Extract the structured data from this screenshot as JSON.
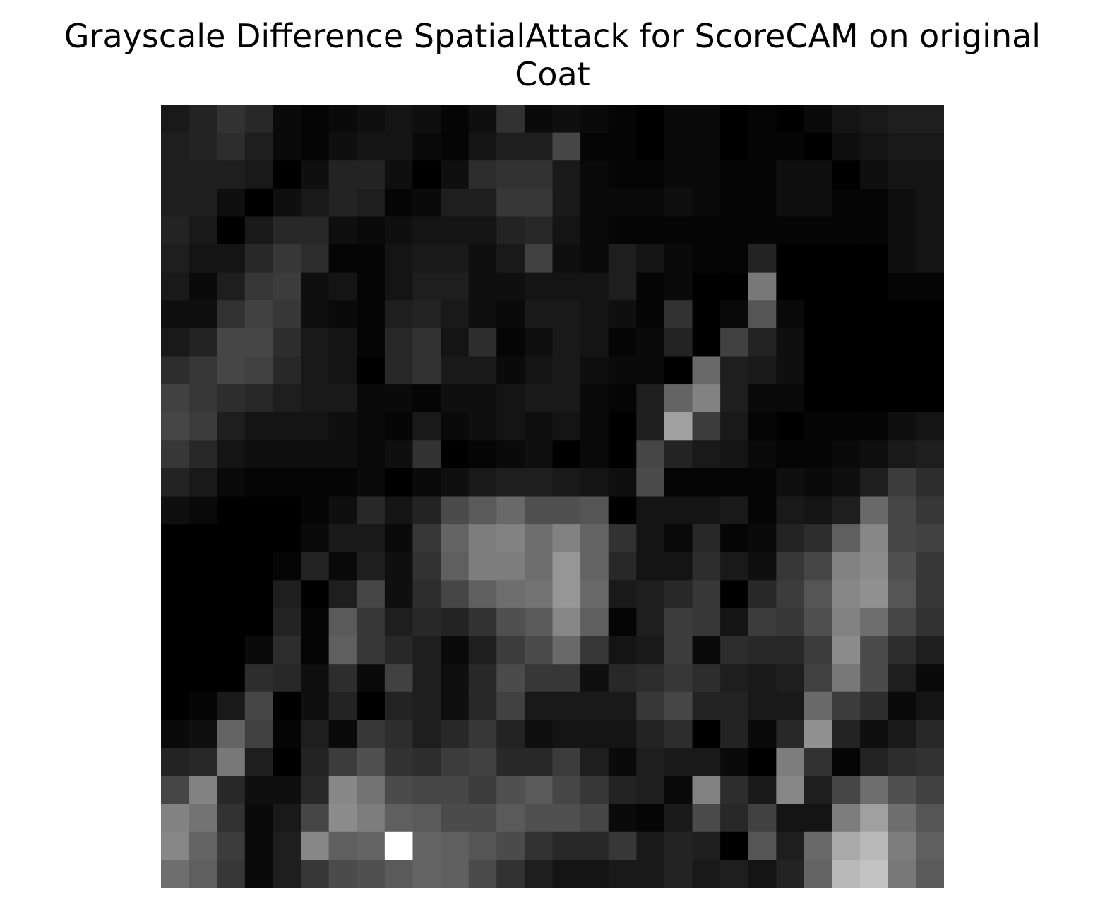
{
  "chart_data": {
    "type": "heatmap",
    "title_lines": [
      "Grayscale Difference SpatialAttack for ScoreCAM on original",
      "Coat"
    ],
    "colormap": "gray",
    "value_range": [
      0,
      255
    ],
    "axes": "off",
    "rows": 28,
    "cols": 28,
    "values": [
      [
        25,
        35,
        50,
        40,
        10,
        5,
        10,
        15,
        20,
        15,
        5,
        15,
        50,
        10,
        15,
        10,
        5,
        0,
        10,
        10,
        0,
        5,
        0,
        10,
        20,
        25,
        30,
        30
      ],
      [
        30,
        35,
        45,
        30,
        10,
        5,
        15,
        20,
        20,
        10,
        5,
        20,
        30,
        30,
        70,
        5,
        5,
        0,
        10,
        10,
        0,
        5,
        5,
        0,
        15,
        20,
        25,
        25
      ],
      [
        30,
        30,
        30,
        25,
        0,
        15,
        35,
        35,
        15,
        0,
        15,
        45,
        50,
        50,
        25,
        10,
        5,
        5,
        10,
        10,
        5,
        5,
        15,
        15,
        0,
        15,
        20,
        20
      ],
      [
        30,
        30,
        15,
        0,
        15,
        25,
        35,
        30,
        5,
        10,
        30,
        30,
        55,
        55,
        25,
        10,
        10,
        10,
        15,
        10,
        5,
        5,
        15,
        15,
        5,
        5,
        15,
        20
      ],
      [
        35,
        25,
        0,
        25,
        40,
        40,
        15,
        10,
        15,
        20,
        20,
        20,
        35,
        40,
        20,
        10,
        5,
        5,
        5,
        5,
        5,
        5,
        5,
        5,
        5,
        5,
        15,
        20
      ],
      [
        30,
        20,
        20,
        40,
        55,
        45,
        5,
        5,
        20,
        25,
        25,
        15,
        25,
        65,
        15,
        10,
        30,
        20,
        10,
        5,
        5,
        35,
        0,
        0,
        0,
        0,
        15,
        20
      ],
      [
        25,
        10,
        30,
        55,
        60,
        15,
        20,
        5,
        20,
        30,
        30,
        15,
        15,
        20,
        20,
        20,
        30,
        5,
        10,
        0,
        0,
        120,
        0,
        0,
        0,
        0,
        5,
        5
      ],
      [
        15,
        15,
        50,
        65,
        55,
        15,
        10,
        5,
        30,
        35,
        25,
        15,
        10,
        25,
        25,
        20,
        15,
        5,
        50,
        0,
        10,
        85,
        10,
        0,
        0,
        0,
        0,
        0
      ],
      [
        25,
        35,
        70,
        70,
        45,
        25,
        20,
        5,
        40,
        50,
        20,
        45,
        5,
        15,
        25,
        20,
        5,
        10,
        35,
        0,
        65,
        35,
        15,
        0,
        0,
        0,
        0,
        0
      ],
      [
        45,
        55,
        70,
        65,
        40,
        25,
        20,
        0,
        40,
        50,
        25,
        25,
        10,
        20,
        25,
        15,
        10,
        10,
        0,
        105,
        30,
        25,
        15,
        0,
        0,
        0,
        0,
        0
      ],
      [
        65,
        55,
        45,
        40,
        30,
        25,
        25,
        10,
        10,
        5,
        15,
        15,
        20,
        25,
        25,
        10,
        5,
        30,
        100,
        130,
        30,
        10,
        10,
        0,
        0,
        0,
        0,
        0
      ],
      [
        70,
        60,
        30,
        20,
        20,
        20,
        15,
        10,
        5,
        25,
        10,
        15,
        20,
        15,
        20,
        10,
        0,
        30,
        160,
        60,
        25,
        5,
        0,
        5,
        5,
        5,
        15,
        20
      ],
      [
        55,
        40,
        20,
        15,
        15,
        15,
        15,
        10,
        15,
        50,
        0,
        5,
        10,
        15,
        0,
        10,
        0,
        70,
        35,
        25,
        20,
        10,
        5,
        5,
        10,
        15,
        25,
        30
      ],
      [
        35,
        25,
        10,
        5,
        5,
        5,
        5,
        10,
        0,
        10,
        15,
        25,
        30,
        30,
        25,
        20,
        15,
        75,
        5,
        5,
        5,
        5,
        15,
        10,
        15,
        30,
        60,
        45
      ],
      [
        15,
        10,
        0,
        0,
        0,
        5,
        15,
        40,
        20,
        35,
        75,
        90,
        105,
        80,
        80,
        85,
        0,
        20,
        20,
        20,
        25,
        5,
        25,
        20,
        30,
        105,
        70,
        55
      ],
      [
        0,
        0,
        0,
        0,
        0,
        10,
        25,
        25,
        10,
        55,
        100,
        125,
        130,
        110,
        130,
        100,
        50,
        20,
        10,
        40,
        5,
        10,
        35,
        45,
        95,
        135,
        70,
        65
      ],
      [
        0,
        0,
        0,
        0,
        5,
        35,
        10,
        30,
        15,
        50,
        95,
        125,
        125,
        110,
        150,
        100,
        40,
        20,
        20,
        45,
        25,
        15,
        55,
        70,
        130,
        140,
        80,
        55
      ],
      [
        0,
        0,
        0,
        0,
        30,
        0,
        30,
        70,
        15,
        45,
        70,
        95,
        110,
        115,
        150,
        105,
        25,
        30,
        40,
        55,
        0,
        40,
        60,
        85,
        135,
        145,
        85,
        55
      ],
      [
        0,
        0,
        0,
        0,
        35,
        5,
        90,
        55,
        30,
        40,
        35,
        50,
        80,
        90,
        135,
        95,
        5,
        30,
        60,
        55,
        20,
        60,
        55,
        80,
        130,
        110,
        70,
        50
      ],
      [
        0,
        0,
        0,
        10,
        45,
        5,
        95,
        55,
        40,
        30,
        10,
        30,
        60,
        75,
        105,
        55,
        20,
        25,
        60,
        10,
        45,
        40,
        40,
        60,
        140,
        75,
        45,
        30
      ],
      [
        0,
        0,
        0,
        45,
        40,
        15,
        45,
        10,
        65,
        30,
        15,
        40,
        75,
        55,
        55,
        15,
        40,
        45,
        55,
        45,
        30,
        25,
        30,
        65,
        120,
        75,
        30,
        10
      ],
      [
        0,
        5,
        25,
        70,
        0,
        15,
        35,
        0,
        35,
        30,
        15,
        40,
        65,
        25,
        25,
        25,
        25,
        55,
        70,
        35,
        35,
        25,
        25,
        105,
        60,
        45,
        10,
        20
      ],
      [
        10,
        15,
        100,
        65,
        5,
        30,
        10,
        55,
        45,
        30,
        40,
        55,
        35,
        15,
        20,
        20,
        20,
        35,
        45,
        0,
        35,
        10,
        40,
        145,
        35,
        15,
        25,
        40
      ],
      [
        35,
        40,
        120,
        30,
        0,
        35,
        60,
        80,
        50,
        45,
        60,
        65,
        40,
        40,
        60,
        30,
        10,
        30,
        25,
        25,
        10,
        0,
        125,
        50,
        5,
        35,
        45,
        50
      ],
      [
        70,
        130,
        40,
        15,
        15,
        40,
        135,
        115,
        75,
        70,
        70,
        60,
        80,
        90,
        70,
        55,
        35,
        30,
        10,
        130,
        45,
        25,
        135,
        30,
        70,
        110,
        80,
        65
      ],
      [
        130,
        115,
        50,
        10,
        25,
        70,
        140,
        125,
        95,
        90,
        75,
        75,
        90,
        80,
        80,
        70,
        10,
        5,
        25,
        75,
        40,
        65,
        20,
        20,
        125,
        160,
        110,
        85
      ],
      [
        135,
        100,
        60,
        10,
        30,
        135,
        95,
        100,
        255,
        100,
        95,
        85,
        75,
        50,
        40,
        40,
        55,
        25,
        35,
        30,
        0,
        85,
        30,
        105,
        170,
        185,
        125,
        95
      ],
      [
        110,
        95,
        55,
        10,
        30,
        55,
        75,
        80,
        90,
        100,
        95,
        75,
        50,
        30,
        20,
        20,
        25,
        25,
        35,
        25,
        30,
        20,
        35,
        100,
        185,
        195,
        120,
        90
      ]
    ]
  }
}
